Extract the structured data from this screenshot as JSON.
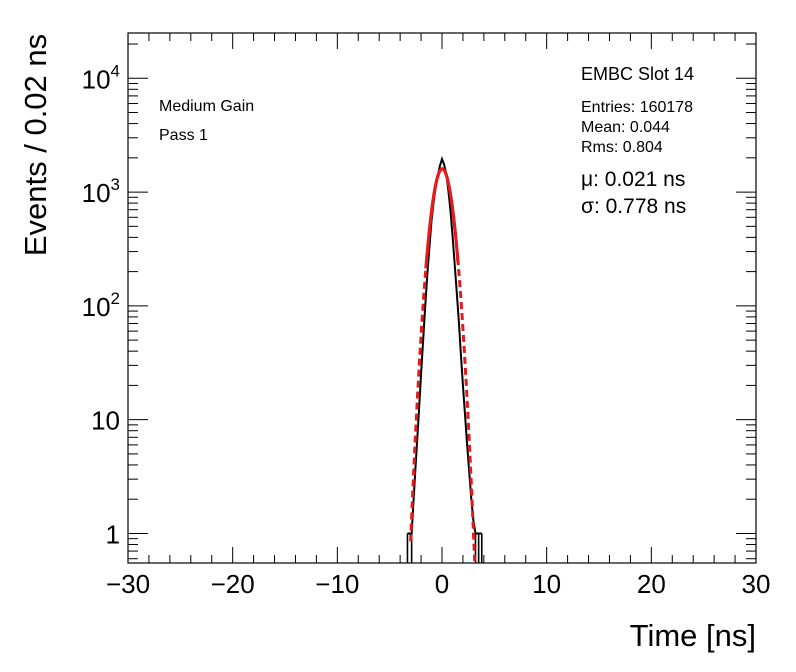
{
  "chart_data": {
    "type": "line",
    "title": "",
    "xlabel": "Time [ns]",
    "ylabel": "Events / 0.02 ns",
    "xlim": [
      -30,
      30
    ],
    "ylim": [
      0.55,
      25000
    ],
    "yscale": "log",
    "grid": false,
    "x_ticks": [
      -30,
      -20,
      -10,
      0,
      10,
      20,
      30
    ],
    "x_tick_labels": [
      "−30",
      "−20",
      "−10",
      "0",
      "10",
      "20",
      "30"
    ],
    "y_ticks": [
      {
        "value": 1,
        "base": "1",
        "exp": ""
      },
      {
        "value": 10,
        "base": "10",
        "exp": ""
      },
      {
        "value": 100,
        "base": "10",
        "exp": "2"
      },
      {
        "value": 1000,
        "base": "10",
        "exp": "3"
      },
      {
        "value": 10000,
        "base": "10",
        "exp": "4"
      }
    ],
    "series": [
      {
        "style": "histogram",
        "color": "#000000",
        "x": [
          -3.3,
          -2.9,
          -2.6,
          -2.4,
          -2.2,
          -2.0,
          -1.8,
          -1.6,
          -1.4,
          -1.2,
          -1.0,
          -0.8,
          -0.6,
          -0.4,
          -0.2,
          0.0,
          0.2,
          0.4,
          0.6,
          0.8,
          1.0,
          1.2,
          1.4,
          1.6,
          1.8,
          2.0,
          2.2,
          2.4,
          2.6,
          2.8,
          3.0,
          3.2,
          3.5,
          3.8
        ],
        "values": [
          1,
          1,
          3,
          6,
          12,
          25,
          50,
          100,
          190,
          330,
          560,
          820,
          1100,
          1400,
          1700,
          1950,
          1750,
          1450,
          1050,
          700,
          420,
          240,
          135,
          75,
          38,
          20,
          11,
          6,
          3.5,
          2,
          1.3,
          1,
          1,
          1
        ]
      },
      {
        "style": "fit",
        "color": "#e41a1c",
        "mu": 0.021,
        "sigma": 0.778,
        "peak": 1600,
        "x_range": [
          -3.0,
          3.2
        ]
      }
    ]
  },
  "annotations": {
    "slot": "EMBC Slot 14",
    "gain": "Medium Gain",
    "pass": "Pass 1",
    "entries": "Entries: 160178",
    "mean": "Mean: 0.044",
    "rms": "Rms: 0.804",
    "mu": "μ: 0.021 ns",
    "sigma": "σ: 0.778 ns"
  }
}
